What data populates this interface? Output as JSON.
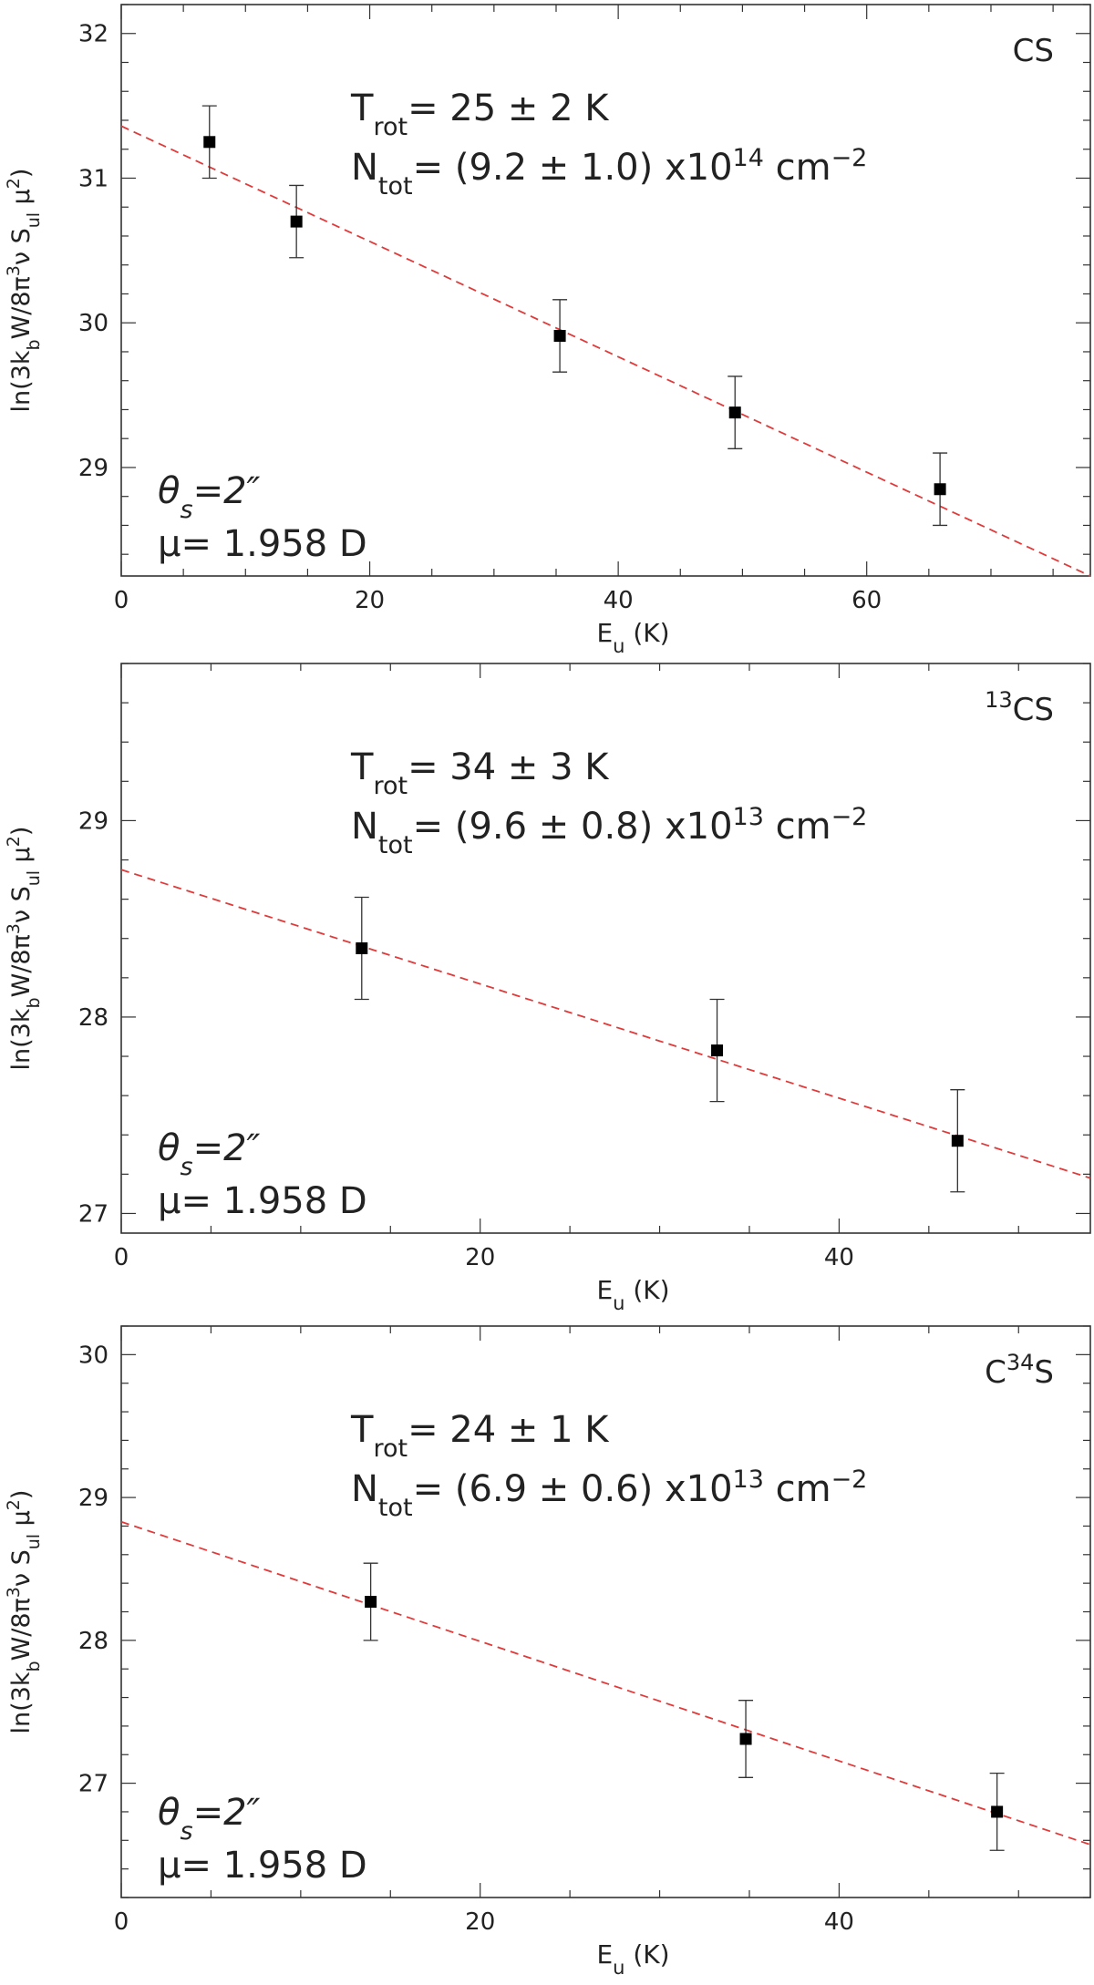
{
  "chart_data": [
    {
      "type": "scatter",
      "species": "CS",
      "xlabel": "E",
      "xlabel_sub": "u",
      "xlabel_unit": " (K)",
      "ylabel": {
        "p1": "ln(3k",
        "s1": "b",
        "p2": "W/8π",
        "s2": "3",
        "p3": "ν S",
        "s3": "ul",
        "p4": " μ",
        "s4": "2",
        "p5": ")"
      },
      "xlim": [
        0,
        78
      ],
      "ylim": [
        28.25,
        32.2
      ],
      "xticks": [
        0,
        20,
        40,
        60
      ],
      "yticks": [
        29,
        30,
        31,
        32
      ],
      "x_minor": 5,
      "y_minor": 0.2,
      "points": [
        {
          "x": 7.1,
          "y": 31.25,
          "err": 0.25
        },
        {
          "x": 14.1,
          "y": 30.7,
          "err": 0.25
        },
        {
          "x": 35.3,
          "y": 29.91,
          "err": 0.25
        },
        {
          "x": 49.4,
          "y": 29.38,
          "err": 0.25
        },
        {
          "x": 65.9,
          "y": 28.85,
          "err": 0.25
        }
      ],
      "fit": {
        "x0": 0,
        "y0": 31.36,
        "x1": 78,
        "y1": 28.25,
        "color": "#e03a3a"
      },
      "trot": {
        "pre": "T",
        "sub": "rot",
        "text": "= 25 ± 2 K"
      },
      "ntot": {
        "pre": "N",
        "sub": "tot",
        "text": "= (9.2 ± 1.0) x10",
        "exp": "14",
        "unit": " cm",
        "unit_exp": "−2"
      },
      "theta": {
        "pre": "θ",
        "sub": "s",
        "text": "=2″"
      },
      "mu": "μ= 1.958 D"
    },
    {
      "type": "scatter",
      "species": "CS",
      "species_pre": "13",
      "xlabel": "E",
      "xlabel_sub": "u",
      "xlabel_unit": " (K)",
      "ylabel": {
        "p1": "ln(3k",
        "s1": "b",
        "p2": "W/8π",
        "s2": "3",
        "p3": "ν S",
        "s3": "ul",
        "p4": " μ",
        "s4": "2",
        "p5": ")"
      },
      "xlim": [
        0,
        54
      ],
      "ylim": [
        26.9,
        29.8
      ],
      "xticks": [
        0,
        20,
        40
      ],
      "yticks": [
        27,
        28,
        29
      ],
      "x_minor": 5,
      "y_minor": 0.2,
      "points": [
        {
          "x": 13.4,
          "y": 28.35,
          "err": 0.26
        },
        {
          "x": 33.2,
          "y": 27.83,
          "err": 0.26
        },
        {
          "x": 46.6,
          "y": 27.37,
          "err": 0.26
        }
      ],
      "fit": {
        "x0": 0,
        "y0": 28.75,
        "x1": 54,
        "y1": 27.18,
        "color": "#e03a3a"
      },
      "trot": {
        "pre": "T",
        "sub": "rot",
        "text": "= 34 ± 3 K"
      },
      "ntot": {
        "pre": "N",
        "sub": "tot",
        "text": "= (9.6 ± 0.8) x10",
        "exp": "13",
        "unit": " cm",
        "unit_exp": "−2"
      },
      "theta": {
        "pre": "θ",
        "sub": "s",
        "text": "=2″"
      },
      "mu": "μ= 1.958 D"
    },
    {
      "type": "scatter",
      "species": "S",
      "species_pre_main": "C",
      "species_sup": "34",
      "xlabel": "E",
      "xlabel_sub": "u",
      "xlabel_unit": " (K)",
      "ylabel": {
        "p1": "ln(3k",
        "s1": "b",
        "p2": "W/8π",
        "s2": "3",
        "p3": "ν S",
        "s3": "ul",
        "p4": " μ",
        "s4": "2",
        "p5": ")"
      },
      "xlim": [
        0,
        54
      ],
      "ylim": [
        26.2,
        30.2
      ],
      "xticks": [
        0,
        20,
        40
      ],
      "yticks": [
        27,
        28,
        29,
        30
      ],
      "x_minor": 5,
      "y_minor": 0.2,
      "points": [
        {
          "x": 13.9,
          "y": 28.27,
          "err": 0.27
        },
        {
          "x": 34.8,
          "y": 27.31,
          "err": 0.27
        },
        {
          "x": 48.8,
          "y": 26.8,
          "err": 0.27
        }
      ],
      "fit": {
        "x0": 0,
        "y0": 28.83,
        "x1": 54,
        "y1": 26.57,
        "color": "#e03a3a"
      },
      "trot": {
        "pre": "T",
        "sub": "rot",
        "text": "= 24 ± 1 K"
      },
      "ntot": {
        "pre": "N",
        "sub": "tot",
        "text": "= (6.9 ± 0.6) x10",
        "exp": "13",
        "unit": " cm",
        "unit_exp": "−2"
      },
      "theta": {
        "pre": "θ",
        "sub": "s",
        "text": "=2″"
      },
      "mu": "μ= 1.958 D"
    }
  ]
}
